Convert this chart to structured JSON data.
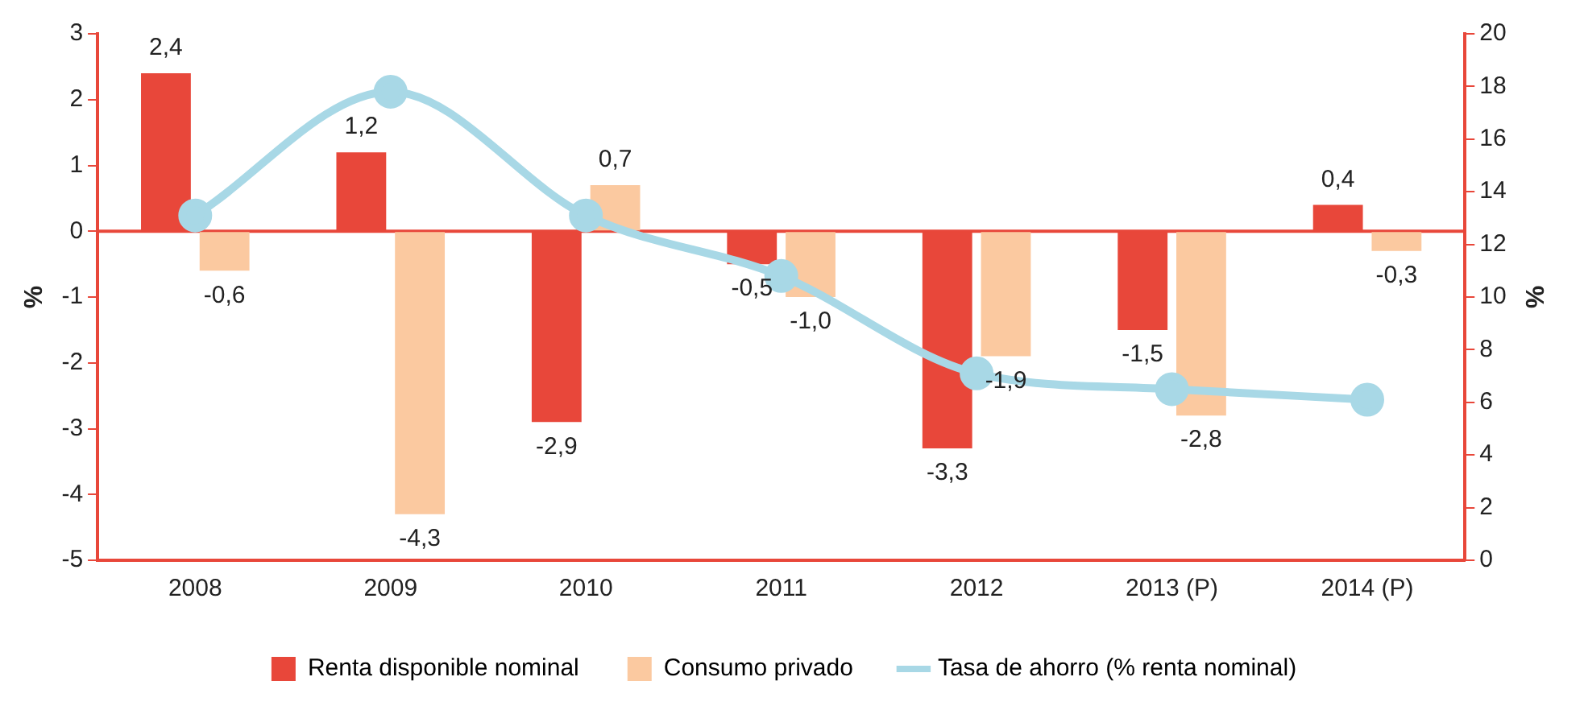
{
  "chart_data": {
    "type": "bar",
    "categories": [
      "2008",
      "2009",
      "2010",
      "2011",
      "2012",
      "2013 (P)",
      "2014 (P)"
    ],
    "series": [
      {
        "name": "Renta disponible nominal",
        "color": "#e8473a",
        "values": [
          2.4,
          1.2,
          -2.9,
          -0.5,
          -3.3,
          -1.5,
          0.4
        ],
        "value_labels": [
          "2,4",
          "1,2",
          "-2,9",
          "-0,5",
          "-3,3",
          "-1,5",
          "0,4"
        ]
      },
      {
        "name": "Consumo privado",
        "color": "#fbc9a0",
        "values": [
          -0.6,
          -4.3,
          0.7,
          -1.0,
          -1.9,
          -2.8,
          -0.3
        ],
        "value_labels": [
          "-0,6",
          "-4,3",
          "0,7",
          "-1,0",
          "-1,9",
          "-2,8",
          "-0,3"
        ]
      },
      {
        "name": "Tasa de ahorro (% renta nominal)",
        "type": "line",
        "axis": "y2",
        "color": "#a8d8e6",
        "values": [
          13.1,
          17.8,
          13.1,
          10.8,
          7.1,
          6.5,
          6.1
        ]
      }
    ],
    "ylabel": "%",
    "y2label": "%",
    "ylim": [
      -5,
      3
    ],
    "yticks": [
      -5,
      -4,
      -3,
      -2,
      -1,
      0,
      1,
      2,
      3
    ],
    "y2lim": [
      0,
      20
    ],
    "y2ticks": [
      0,
      2,
      4,
      6,
      8,
      10,
      12,
      14,
      16,
      18,
      20
    ],
    "ref_lines": [
      {
        "axis": "y",
        "value": 0,
        "color": "#e8473a"
      }
    ],
    "grid": false,
    "legend": "bottom",
    "marker": "circle"
  }
}
